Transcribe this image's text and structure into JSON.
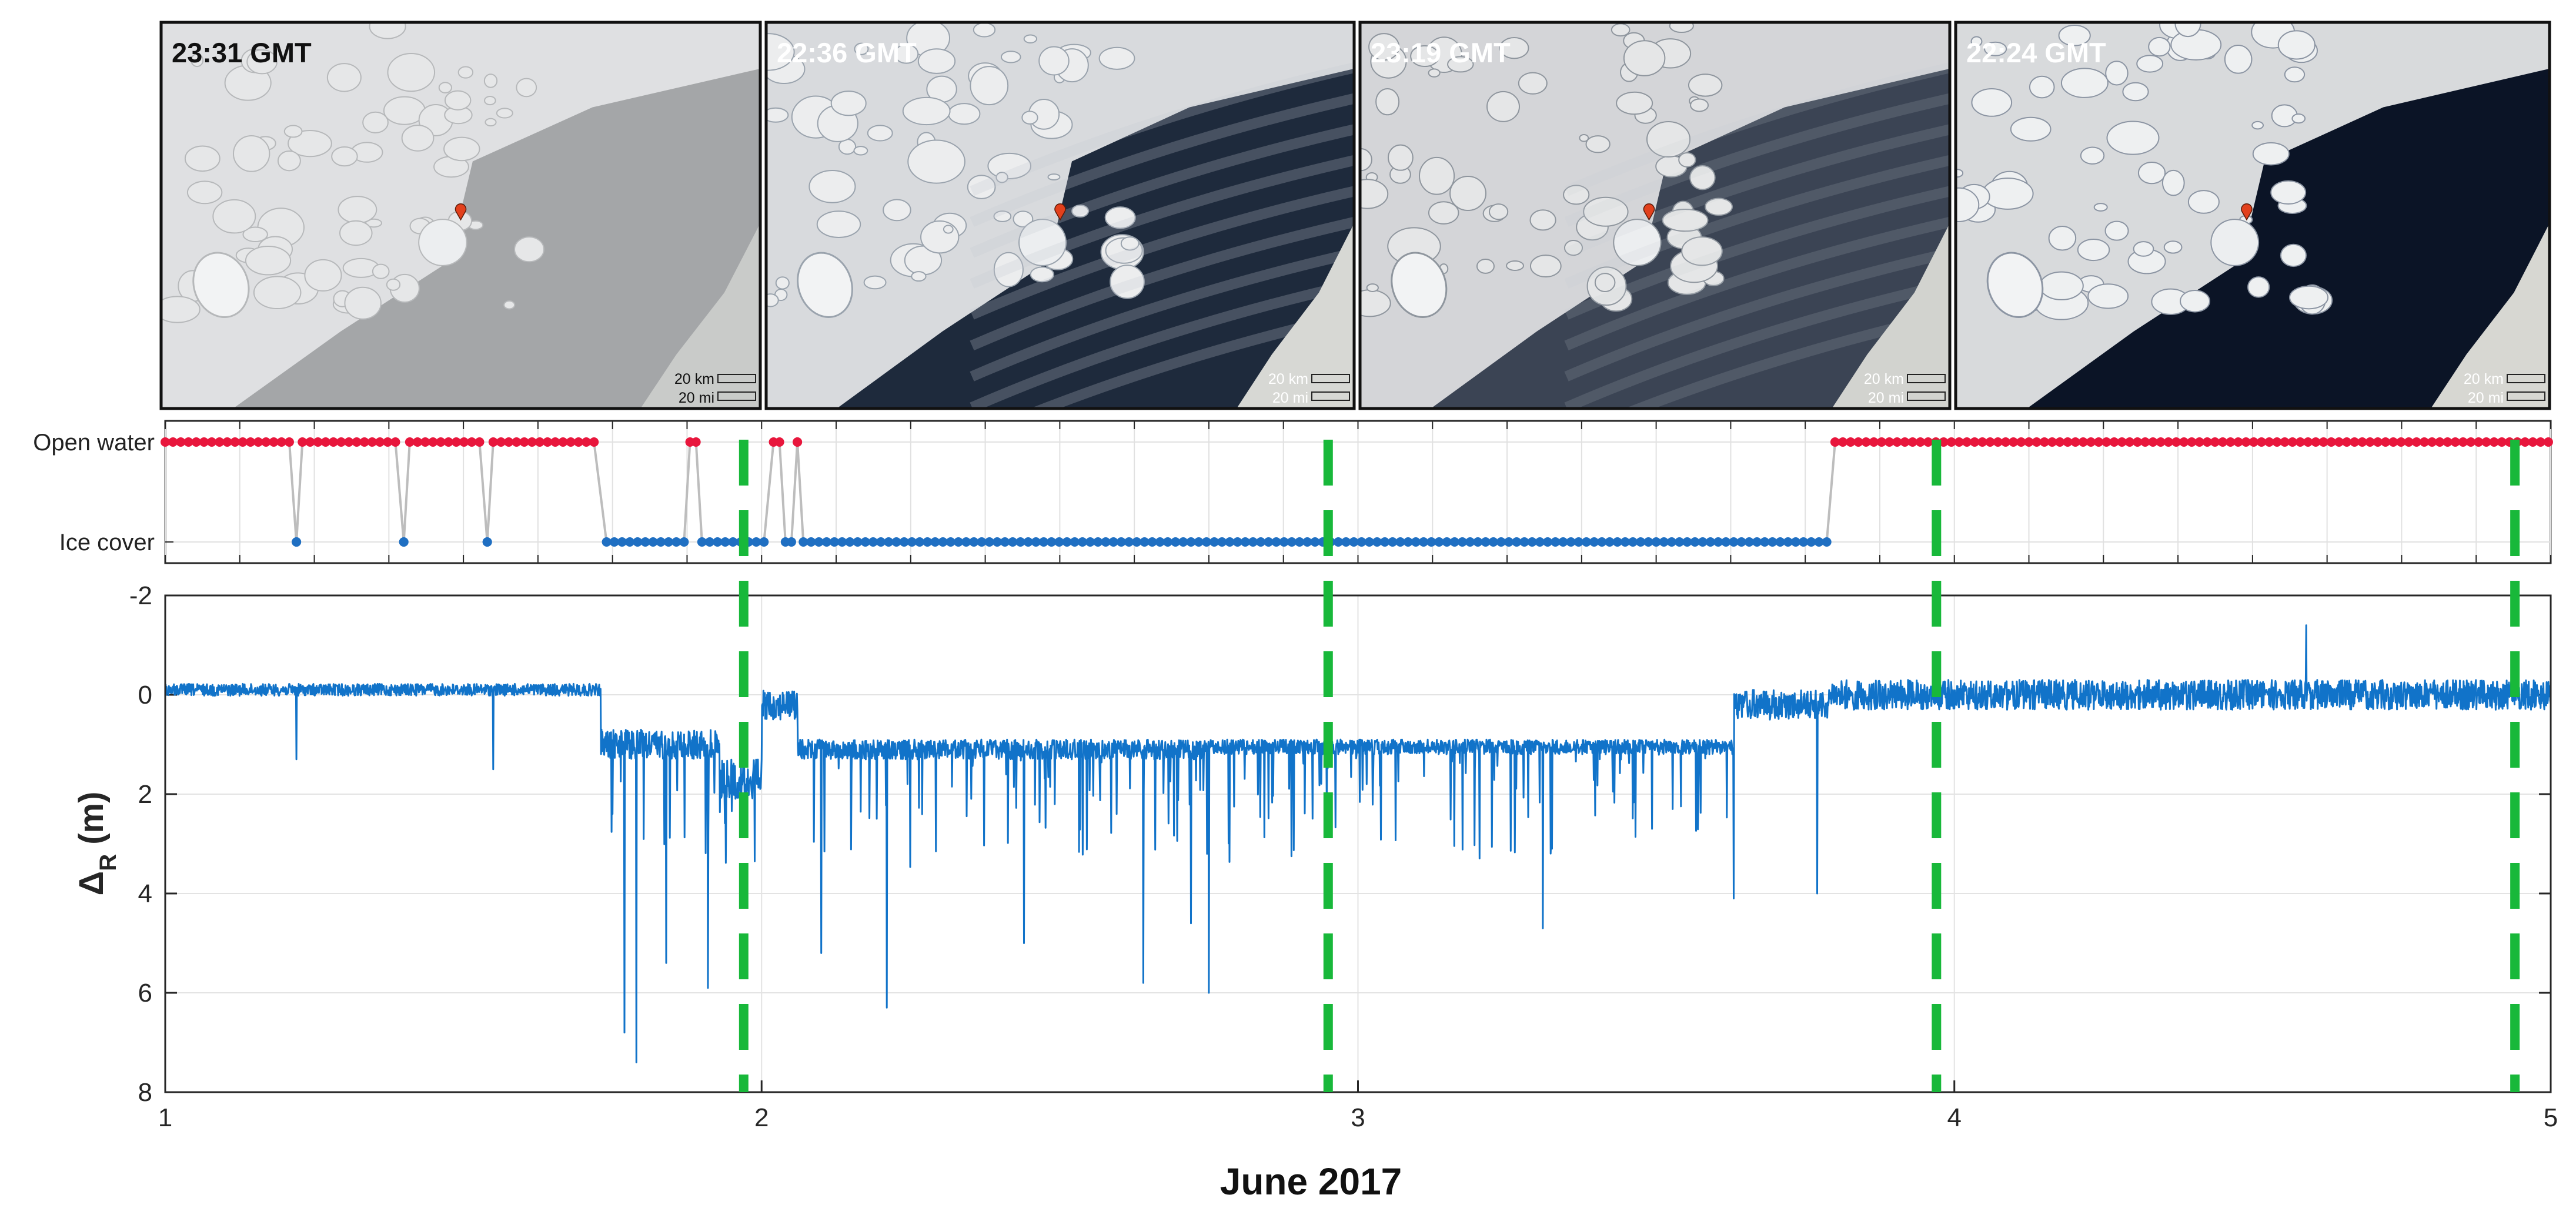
{
  "images": [
    {
      "time": "23:31 GMT",
      "scale_km": "20 km",
      "scale_mi": "20 mi",
      "theme": "cloudy"
    },
    {
      "time": "22:36 GMT",
      "scale_km": "20 km",
      "scale_mi": "20 mi",
      "theme": "dark"
    },
    {
      "time": "23:19 GMT",
      "scale_km": "20 km",
      "scale_mi": "20 mi",
      "theme": "streaks"
    },
    {
      "time": "22:24 GMT",
      "scale_km": "20 km",
      "scale_mi": "20 mi",
      "theme": "open"
    }
  ],
  "colors": {
    "open_water": "#e8163c",
    "ice_cover": "#1f6fc2",
    "signal": "#1173c9",
    "marker": "#18b83a",
    "connector": "#bdbdbd"
  },
  "chart_data": [
    {
      "type": "scatter",
      "categories": [
        "Open water",
        "Ice cover"
      ],
      "xlim": [
        1,
        5
      ],
      "grid": true,
      "segments": [
        {
          "state": "Open water",
          "start": 1.0,
          "end": 1.21
        },
        {
          "state": "Ice cover",
          "start": 1.22,
          "end": 1.22
        },
        {
          "state": "Open water",
          "start": 1.23,
          "end": 1.39
        },
        {
          "state": "Ice cover",
          "start": 1.4,
          "end": 1.4
        },
        {
          "state": "Open water",
          "start": 1.41,
          "end": 1.53
        },
        {
          "state": "Ice cover",
          "start": 1.54,
          "end": 1.54
        },
        {
          "state": "Open water",
          "start": 1.55,
          "end": 1.73
        },
        {
          "state": "Ice cover",
          "start": 1.74,
          "end": 1.87
        },
        {
          "state": "Open water",
          "start": 1.88,
          "end": 1.89
        },
        {
          "state": "Ice cover",
          "start": 1.9,
          "end": 2.01
        },
        {
          "state": "Open water",
          "start": 2.02,
          "end": 2.03
        },
        {
          "state": "Ice cover",
          "start": 2.04,
          "end": 2.05
        },
        {
          "state": "Open water",
          "start": 2.06,
          "end": 2.06
        },
        {
          "state": "Ice cover",
          "start": 2.07,
          "end": 3.79
        },
        {
          "state": "Open water",
          "start": 3.8,
          "end": 5.0
        }
      ]
    },
    {
      "type": "line",
      "ylabel": "Δ",
      "ylabel_sub": "R",
      "ylabel_unit": " (m)",
      "xlabel": "June 2017",
      "xlim": [
        1,
        5
      ],
      "ylim": [
        -2,
        8
      ],
      "y_reversed": true,
      "xticks": [
        "1",
        "2",
        "3",
        "4",
        "5"
      ],
      "yticks": [
        "-2",
        "0",
        "2",
        "4",
        "6",
        "8"
      ],
      "grid": true,
      "markers_x": [
        1.97,
        2.95,
        3.97,
        4.94
      ],
      "phases": [
        {
          "start": 1.0,
          "end": 1.73,
          "mean": -0.1,
          "noise": 0.12
        },
        {
          "start": 1.73,
          "end": 1.93,
          "mean": 1.0,
          "noise": 0.3
        },
        {
          "start": 1.93,
          "end": 2.0,
          "mean": 1.7,
          "noise": 0.4
        },
        {
          "start": 2.0,
          "end": 2.06,
          "mean": 0.2,
          "noise": 0.3
        },
        {
          "start": 2.06,
          "end": 2.75,
          "mean": 1.1,
          "noise": 0.2
        },
        {
          "start": 2.75,
          "end": 3.63,
          "mean": 1.05,
          "noise": 0.15
        },
        {
          "start": 3.63,
          "end": 3.79,
          "mean": 0.2,
          "noise": 0.3
        },
        {
          "start": 3.79,
          "end": 5.0,
          "mean": 0.0,
          "noise": 0.3
        }
      ],
      "extremes": [
        {
          "x": 1.22,
          "y": 1.3
        },
        {
          "x": 1.55,
          "y": 1.5
        },
        {
          "x": 1.77,
          "y": 6.8
        },
        {
          "x": 1.79,
          "y": 7.4
        },
        {
          "x": 1.84,
          "y": 5.4
        },
        {
          "x": 1.91,
          "y": 5.9
        },
        {
          "x": 2.1,
          "y": 5.2
        },
        {
          "x": 2.21,
          "y": 6.3
        },
        {
          "x": 2.44,
          "y": 5.0
        },
        {
          "x": 2.64,
          "y": 5.8
        },
        {
          "x": 2.72,
          "y": 4.6
        },
        {
          "x": 2.75,
          "y": 6.0
        },
        {
          "x": 3.31,
          "y": 4.7
        },
        {
          "x": 3.63,
          "y": 4.1
        },
        {
          "x": 3.77,
          "y": 4.0
        },
        {
          "x": 4.59,
          "y": -1.4
        }
      ]
    }
  ]
}
